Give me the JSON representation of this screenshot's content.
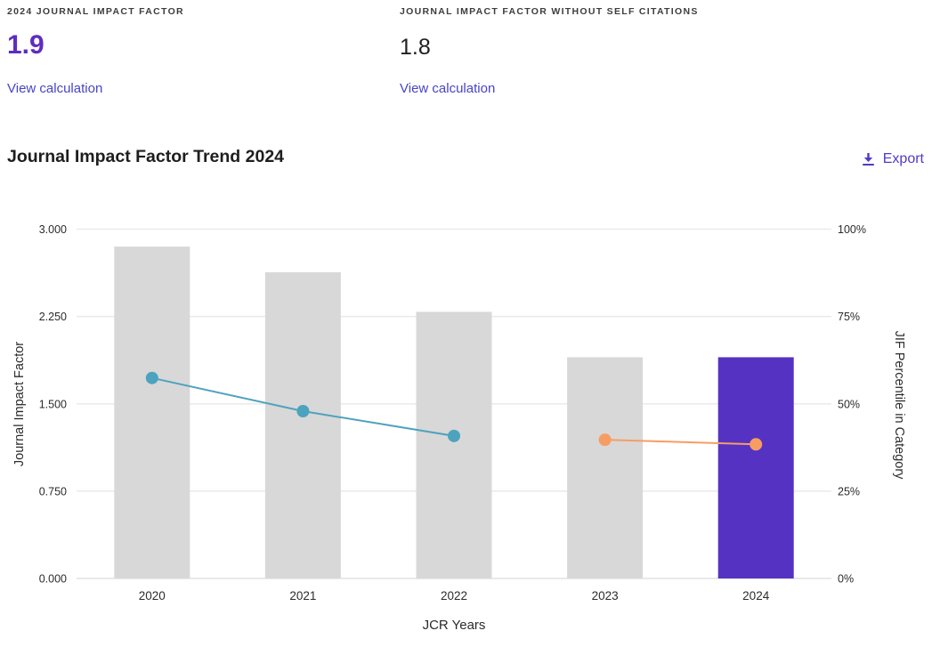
{
  "colors": {
    "accent_purple": "#5E2DBF",
    "value_dark": "#1f1f1f",
    "link": "#4744C8",
    "export": "#5438C9",
    "bar_gray": "#D8D8D8",
    "bar_highlight": "#5632C3",
    "line_teal": "#4DA3BD",
    "line_orange": "#F79D63",
    "gridline": "#EAEAEA"
  },
  "metrics": [
    {
      "label": "2024 JOURNAL IMPACT FACTOR",
      "value": "1.9",
      "link": "View calculation"
    },
    {
      "label": "JOURNAL IMPACT FACTOR WITHOUT SELF CITATIONS",
      "value": "1.8",
      "link": "View calculation"
    }
  ],
  "section": {
    "title": "Journal Impact Factor Trend 2024",
    "export_label": "Export",
    "export_icon": "download-icon"
  },
  "chart_data": {
    "type": "bar",
    "title": "Journal Impact Factor Trend 2024",
    "categories": [
      "2020",
      "2021",
      "2022",
      "2023",
      "2024"
    ],
    "x_axis": {
      "title": "JCR Years"
    },
    "left_axis": {
      "title": "Journal Impact Factor",
      "min": 0,
      "max": 3,
      "tick_values": [
        0,
        0.75,
        1.5,
        2.25,
        3
      ],
      "tick_labels": [
        "0.000",
        "0.750",
        "1.500",
        "2.250",
        "3.000"
      ]
    },
    "right_axis": {
      "title": "JIF Percentile in Category",
      "min": 0,
      "max": 100,
      "tick_values": [
        0,
        25,
        50,
        75,
        100
      ],
      "tick_labels": [
        "0%",
        "25%",
        "50%",
        "75%",
        "100%"
      ]
    },
    "grid": true,
    "legend": "none",
    "bars": {
      "name": "Journal Impact Factor",
      "values": [
        2.85,
        2.63,
        2.29,
        1.9,
        1.9
      ],
      "default_color": "#D8D8D8",
      "highlight_color": "#5632C3",
      "highlight_index": 4
    },
    "lines": [
      {
        "name": "JIF Percentile in Category (2020-2022)",
        "color": "#4DA3BD",
        "points": [
          {
            "x": "2020",
            "y": 57.4
          },
          {
            "x": "2021",
            "y": 47.9
          },
          {
            "x": "2022",
            "y": 40.8
          }
        ]
      },
      {
        "name": "JIF Percentile in Category (2023-2024)",
        "color": "#F79D63",
        "points": [
          {
            "x": "2023",
            "y": 39.7
          },
          {
            "x": "2024",
            "y": 38.4
          }
        ]
      }
    ]
  }
}
